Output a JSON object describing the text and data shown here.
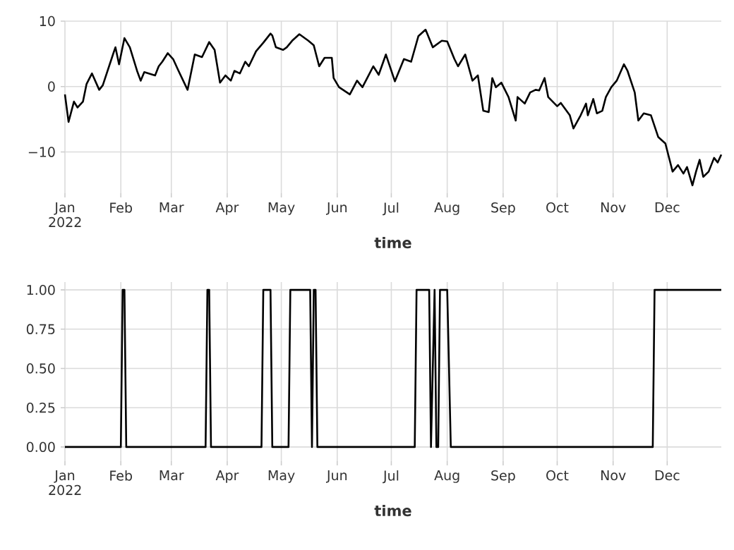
{
  "chart_data": [
    {
      "type": "line",
      "xlabel": "time",
      "grid": true,
      "xlim": [
        "2022-01-01",
        "2022-12-31"
      ],
      "ylim": [
        -16.3,
        10
      ],
      "xticks": [
        {
          "value": "2022-01-01",
          "label": "Jan 2022"
        },
        {
          "value": "2022-02-01",
          "label": "Feb"
        },
        {
          "value": "2022-03-01",
          "label": "Mar"
        },
        {
          "value": "2022-04-01",
          "label": "Apr"
        },
        {
          "value": "2022-05-01",
          "label": "May"
        },
        {
          "value": "2022-06-01",
          "label": "Jun"
        },
        {
          "value": "2022-07-01",
          "label": "Jul"
        },
        {
          "value": "2022-08-01",
          "label": "Aug"
        },
        {
          "value": "2022-09-01",
          "label": "Sep"
        },
        {
          "value": "2022-10-01",
          "label": "Oct"
        },
        {
          "value": "2022-11-01",
          "label": "Nov"
        },
        {
          "value": "2022-12-01",
          "label": "Dec"
        }
      ],
      "yticks": [
        {
          "value": -10,
          "label": "−10"
        },
        0,
        10
      ],
      "series": [
        {
          "color": "#000000",
          "x": [
            "2022-01-01",
            "2022-01-03",
            "2022-01-06",
            "2022-01-08",
            "2022-01-11",
            "2022-01-13",
            "2022-01-16",
            "2022-01-20",
            "2022-01-22",
            "2022-01-28",
            "2022-01-29",
            "2022-01-31",
            "2022-02-03",
            "2022-02-06",
            "2022-02-10",
            "2022-02-12",
            "2022-02-14",
            "2022-02-20",
            "2022-02-22",
            "2022-02-24",
            "2022-02-27",
            "2022-03-02",
            "2022-03-05",
            "2022-03-10",
            "2022-03-14",
            "2022-03-18",
            "2022-03-22",
            "2022-03-25",
            "2022-03-28",
            "2022-03-31",
            "2022-04-03",
            "2022-04-05",
            "2022-04-08",
            "2022-04-11",
            "2022-04-13",
            "2022-04-17",
            "2022-04-21",
            "2022-04-25",
            "2022-04-26",
            "2022-04-28",
            "2022-05-02",
            "2022-05-04",
            "2022-05-07",
            "2022-05-11",
            "2022-05-16",
            "2022-05-19",
            "2022-05-22",
            "2022-05-25",
            "2022-05-29",
            "2022-05-30",
            "2022-06-02",
            "2022-06-08",
            "2022-06-12",
            "2022-06-15",
            "2022-06-18",
            "2022-06-21",
            "2022-06-24",
            "2022-06-28",
            "2022-07-03",
            "2022-07-08",
            "2022-07-12",
            "2022-07-16",
            "2022-07-20",
            "2022-07-24",
            "2022-07-29",
            "2022-08-01",
            "2022-08-05",
            "2022-08-07",
            "2022-08-11",
            "2022-08-15",
            "2022-08-18",
            "2022-08-21",
            "2022-08-24",
            "2022-08-26",
            "2022-08-28",
            "2022-08-31",
            "2022-09-04",
            "2022-09-08",
            "2022-09-09",
            "2022-09-13",
            "2022-09-16",
            "2022-09-19",
            "2022-09-21",
            "2022-09-24",
            "2022-09-26",
            "2022-10-01",
            "2022-10-03",
            "2022-10-08",
            "2022-10-10",
            "2022-10-14",
            "2022-10-17",
            "2022-10-18",
            "2022-10-21",
            "2022-10-23",
            "2022-10-26",
            "2022-10-28",
            "2022-10-31",
            "2022-11-03",
            "2022-11-07",
            "2022-11-09",
            "2022-11-13",
            "2022-11-15",
            "2022-11-18",
            "2022-11-22",
            "2022-11-26",
            "2022-11-30",
            "2022-12-04",
            "2022-12-07",
            "2022-12-10",
            "2022-12-12",
            "2022-12-15",
            "2022-12-17",
            "2022-12-19",
            "2022-12-21",
            "2022-12-24",
            "2022-12-27",
            "2022-12-29",
            "2022-12-31"
          ],
          "values": [
            -1.2,
            -5.4,
            -2.3,
            -3.2,
            -2.3,
            0.4,
            2.0,
            -0.5,
            0.2,
            5.2,
            6.0,
            3.4,
            7.4,
            6.0,
            2.4,
            0.9,
            2.2,
            1.7,
            3.1,
            3.8,
            5.1,
            4.2,
            2.4,
            -0.5,
            4.9,
            4.5,
            6.8,
            5.6,
            0.6,
            1.7,
            0.9,
            2.4,
            2.0,
            3.8,
            3.1,
            5.4,
            6.7,
            8.1,
            7.8,
            6.0,
            5.6,
            6.0,
            7.0,
            8.0,
            7.0,
            6.3,
            3.1,
            4.4,
            4.4,
            1.3,
            -0.1,
            -1.2,
            0.9,
            -0.1,
            1.5,
            3.1,
            1.8,
            4.9,
            0.8,
            4.2,
            3.8,
            7.7,
            8.7,
            6.0,
            7.0,
            6.9,
            4.2,
            3.1,
            4.9,
            0.9,
            1.7,
            -3.7,
            -3.9,
            1.3,
            -0.1,
            0.6,
            -1.6,
            -5.2,
            -1.6,
            -2.6,
            -0.9,
            -0.5,
            -0.6,
            1.3,
            -1.6,
            -3.0,
            -2.5,
            -4.4,
            -6.4,
            -4.4,
            -2.6,
            -4.4,
            -1.9,
            -4.1,
            -3.7,
            -1.6,
            -0.1,
            0.9,
            3.4,
            2.4,
            -0.9,
            -5.2,
            -4.1,
            -4.4,
            -7.7,
            -8.7,
            -13.0,
            -12.0,
            -13.3,
            -12.3,
            -15.1,
            -13.0,
            -11.2,
            -13.8,
            -13.0,
            -10.9,
            -11.6,
            -10.4
          ]
        }
      ]
    },
    {
      "type": "line",
      "xlabel": "time",
      "grid": true,
      "xlim": [
        "2022-01-01",
        "2022-12-31"
      ],
      "ylim": [
        -0.09,
        1.05
      ],
      "xticks": [
        {
          "value": "2022-01-01",
          "label": "Jan 2022"
        },
        {
          "value": "2022-02-01",
          "label": "Feb"
        },
        {
          "value": "2022-03-01",
          "label": "Mar"
        },
        {
          "value": "2022-04-01",
          "label": "Apr"
        },
        {
          "value": "2022-05-01",
          "label": "May"
        },
        {
          "value": "2022-06-01",
          "label": "Jun"
        },
        {
          "value": "2022-07-01",
          "label": "Jul"
        },
        {
          "value": "2022-08-01",
          "label": "Aug"
        },
        {
          "value": "2022-09-01",
          "label": "Sep"
        },
        {
          "value": "2022-10-01",
          "label": "Oct"
        },
        {
          "value": "2022-11-01",
          "label": "Nov"
        },
        {
          "value": "2022-12-01",
          "label": "Dec"
        }
      ],
      "yticks": [
        {
          "value": 0,
          "label": "0.00"
        },
        {
          "value": 0.25,
          "label": "0.25"
        },
        {
          "value": 0.5,
          "label": "0.50"
        },
        {
          "value": 0.75,
          "label": "0.75"
        },
        {
          "value": 1,
          "label": "1.00"
        }
      ],
      "series": [
        {
          "color": "#000000",
          "x": [
            "2022-01-01",
            "2022-02-01",
            "2022-02-02",
            "2022-02-03",
            "2022-02-04",
            "2022-03-20",
            "2022-03-21",
            "2022-03-22",
            "2022-03-23",
            "2022-04-20",
            "2022-04-21",
            "2022-04-25",
            "2022-04-26",
            "2022-05-05",
            "2022-05-06",
            "2022-05-17",
            "2022-05-18",
            "2022-05-19",
            "2022-05-20",
            "2022-05-21",
            "2022-07-14",
            "2022-07-15",
            "2022-07-22",
            "2022-07-23",
            "2022-07-25",
            "2022-07-26",
            "2022-07-27",
            "2022-07-28",
            "2022-08-01",
            "2022-08-03",
            "2022-11-23",
            "2022-11-24",
            "2022-12-31"
          ],
          "values": [
            0,
            0,
            1,
            1,
            0,
            0,
            1,
            1,
            0,
            0,
            1,
            1,
            0,
            0,
            1,
            1,
            0,
            1,
            1,
            0,
            0,
            1,
            1,
            0,
            1,
            0,
            0,
            1,
            1,
            0,
            0,
            1,
            1
          ]
        }
      ]
    }
  ]
}
